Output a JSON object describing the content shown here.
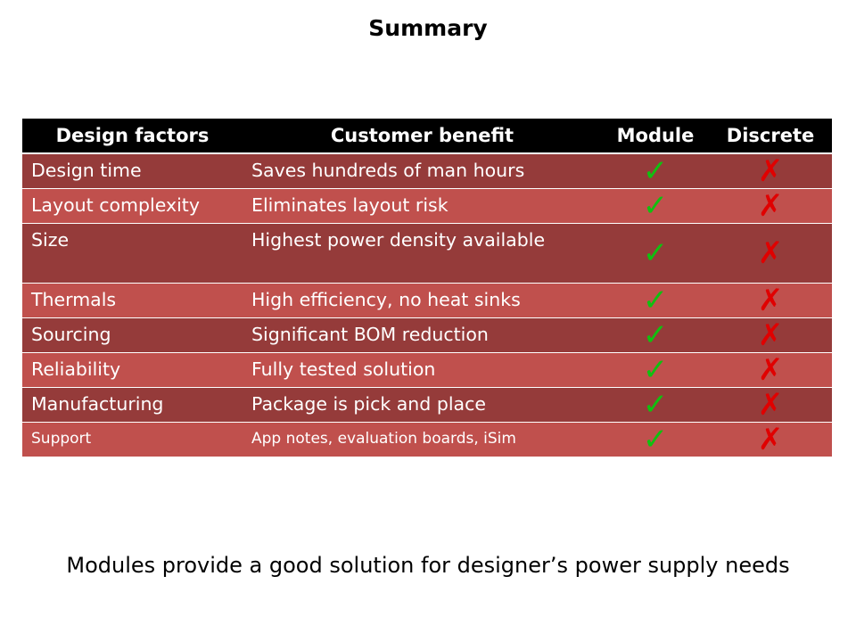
{
  "title": "Summary",
  "table": {
    "headers": [
      "Design factors",
      "Customer benefit",
      "Module",
      "Discrete"
    ],
    "rows": [
      {
        "factor": "Design time",
        "benefit": "Saves hundreds of man hours",
        "module": "✓",
        "discrete": "✗"
      },
      {
        "factor": "Layout complexity",
        "benefit": "Eliminates layout risk",
        "module": "✓",
        "discrete": "✗"
      },
      {
        "factor": "Size",
        "benefit": "Highest power density available",
        "module": "✓",
        "discrete": "✗"
      },
      {
        "factor": "Thermals",
        "benefit": "High efficiency, no heat sinks",
        "module": "✓",
        "discrete": "✗"
      },
      {
        "factor": "Sourcing",
        "benefit": "Significant BOM reduction",
        "module": "✓",
        "discrete": "✗"
      },
      {
        "factor": "Reliability",
        "benefit": "Fully tested solution",
        "module": "✓",
        "discrete": "✗"
      },
      {
        "factor": "Manufacturing",
        "benefit": "Package is pick and place",
        "module": "✓",
        "discrete": "✗"
      },
      {
        "factor": "Support",
        "benefit": "App notes, evaluation boards, iSim",
        "module": "✓",
        "discrete": "✗"
      }
    ]
  },
  "footer": "Modules provide a good solution for designer’s power supply needs",
  "colors": {
    "dark_row": "#953b3a",
    "light_row": "#c0504d",
    "check": "#10c010",
    "cross": "#e00000"
  }
}
